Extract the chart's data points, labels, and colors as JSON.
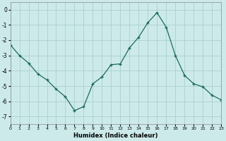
{
  "x": [
    0,
    1,
    2,
    3,
    4,
    5,
    6,
    7,
    8,
    9,
    10,
    11,
    12,
    13,
    14,
    15,
    16,
    17,
    18,
    19,
    20,
    21,
    22,
    23
  ],
  "y": [
    -2.3,
    -3.0,
    -3.5,
    -4.2,
    -4.6,
    -5.2,
    -5.7,
    -6.6,
    -6.35,
    -4.85,
    -4.4,
    -3.6,
    -3.55,
    -2.5,
    -1.8,
    -0.85,
    -0.2,
    -1.15,
    -3.0,
    -4.3,
    -4.85,
    -5.05,
    -5.6,
    -5.9
  ],
  "line_color": "#1b6b5a",
  "bg_color": "#cdeaea",
  "grid_color": "#aacfcf",
  "xlabel": "Humidex (Indice chaleur)",
  "xlim": [
    0,
    23
  ],
  "ylim": [
    -7.5,
    0.5
  ],
  "yticks": [
    0,
    -1,
    -2,
    -3,
    -4,
    -5,
    -6,
    -7
  ],
  "xticks": [
    0,
    1,
    2,
    3,
    4,
    5,
    6,
    7,
    8,
    9,
    10,
    11,
    12,
    13,
    14,
    15,
    16,
    17,
    18,
    19,
    20,
    21,
    22,
    23
  ],
  "marker": "+"
}
